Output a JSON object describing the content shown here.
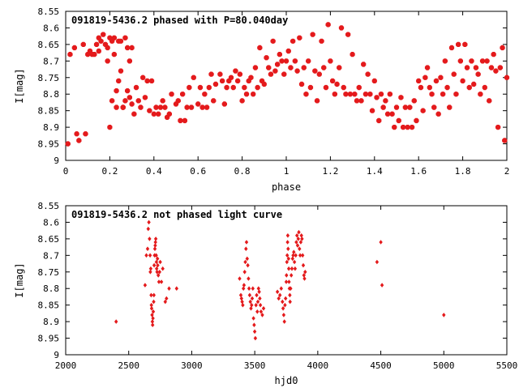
{
  "chart_data": [
    {
      "type": "scatter",
      "title": "091819-5436.2 phased with P=80.040day",
      "xlabel": "phase",
      "ylabel": "I[mag]",
      "xlim": [
        0,
        2
      ],
      "ylim": [
        9,
        8.55
      ],
      "y_inverted": true,
      "grid": false,
      "xticks": [
        0,
        0.2,
        0.4,
        0.6,
        0.8,
        1,
        1.2,
        1.4,
        1.6,
        1.8,
        2
      ],
      "xtick_labels": [
        "0",
        "0.2",
        "0.4",
        "0.6",
        "0.8",
        "1",
        "1.2",
        "1.4",
        "1.6",
        "1.8",
        "2"
      ],
      "yticks": [
        8.55,
        8.6,
        8.65,
        8.7,
        8.75,
        8.8,
        8.85,
        8.9,
        8.95,
        9
      ],
      "ytick_labels": [
        "8.55",
        "8.6",
        "8.65",
        "8.7",
        "8.75",
        "8.8",
        "8.85",
        "8.9",
        "8.95",
        "9"
      ],
      "color": "#e41a1c",
      "marker": "star",
      "series": [
        {
          "x": [
            0.01,
            0.02,
            0.04,
            0.05,
            0.06,
            0.08,
            0.09,
            0.1,
            0.11,
            0.12,
            0.13,
            0.14,
            0.15,
            0.15,
            0.16,
            0.17,
            0.18,
            0.19,
            0.19,
            0.2,
            0.2,
            0.21,
            0.21,
            0.22,
            0.22,
            0.23,
            0.23,
            0.24,
            0.24,
            0.25,
            0.25,
            0.26,
            0.26,
            0.27,
            0.27,
            0.28,
            0.28,
            0.29,
            0.29,
            0.3,
            0.3,
            0.31,
            0.32,
            0.33,
            0.34,
            0.35,
            0.36,
            0.37,
            0.38,
            0.39,
            0.4,
            0.41,
            0.42,
            0.43,
            0.44,
            0.45,
            0.46,
            0.47,
            0.48,
            0.5,
            0.51,
            0.52,
            0.53,
            0.54,
            0.55,
            0.56,
            0.57,
            0.58,
            0.6,
            0.61,
            0.62,
            0.63,
            0.64,
            0.65,
            0.66,
            0.67,
            0.68,
            0.7,
            0.71,
            0.72,
            0.73,
            0.74,
            0.75,
            0.76,
            0.77,
            0.78,
            0.79,
            0.8,
            0.81,
            0.82,
            0.83,
            0.84,
            0.85,
            0.86,
            0.87,
            0.88,
            0.89,
            0.9,
            0.91,
            0.92,
            0.93,
            0.94,
            0.95,
            0.96,
            0.97,
            0.98,
            0.99,
            1.0,
            1.01,
            1.02,
            1.03,
            1.04,
            1.05,
            1.06,
            1.07,
            1.08,
            1.09,
            1.1,
            1.11,
            1.12,
            1.13,
            1.14,
            1.15,
            1.16,
            1.17,
            1.18,
            1.19,
            1.2,
            1.21,
            1.22,
            1.23,
            1.24,
            1.25,
            1.26,
            1.27,
            1.28,
            1.29,
            1.3,
            1.31,
            1.32,
            1.33,
            1.34,
            1.35,
            1.36,
            1.37,
            1.38,
            1.39,
            1.4,
            1.41,
            1.42,
            1.43,
            1.44,
            1.45,
            1.46,
            1.47,
            1.48,
            1.49,
            1.5,
            1.51,
            1.52,
            1.53,
            1.54,
            1.55,
            1.56,
            1.57,
            1.58,
            1.59,
            1.6,
            1.61,
            1.62,
            1.63,
            1.64,
            1.65,
            1.66,
            1.67,
            1.68,
            1.69,
            1.7,
            1.71,
            1.72,
            1.73,
            1.74,
            1.75,
            1.76,
            1.77,
            1.78,
            1.79,
            1.8,
            1.81,
            1.82,
            1.83,
            1.84,
            1.85,
            1.86,
            1.87,
            1.88,
            1.89,
            1.9,
            1.91,
            1.92,
            1.93,
            1.94,
            1.95,
            1.96,
            1.97,
            1.98,
            1.99,
            2.0
          ],
          "y": [
            8.95,
            8.68,
            8.66,
            8.92,
            8.94,
            8.65,
            8.92,
            8.68,
            8.67,
            8.68,
            8.68,
            8.65,
            8.63,
            8.67,
            8.64,
            8.62,
            8.65,
            8.66,
            8.7,
            8.63,
            8.9,
            8.64,
            8.82,
            8.63,
            8.68,
            8.79,
            8.84,
            8.64,
            8.76,
            8.64,
            8.73,
            8.84,
            8.84,
            8.63,
            8.82,
            8.66,
            8.79,
            8.81,
            8.7,
            8.83,
            8.66,
            8.86,
            8.78,
            8.82,
            8.84,
            8.75,
            8.81,
            8.76,
            8.85,
            8.76,
            8.86,
            8.84,
            8.86,
            8.84,
            8.82,
            8.84,
            8.87,
            8.86,
            8.8,
            8.83,
            8.82,
            8.88,
            8.8,
            8.88,
            8.84,
            8.78,
            8.84,
            8.75,
            8.83,
            8.78,
            8.84,
            8.8,
            8.84,
            8.78,
            8.74,
            8.82,
            8.77,
            8.74,
            8.76,
            8.83,
            8.78,
            8.76,
            8.75,
            8.78,
            8.73,
            8.76,
            8.74,
            8.82,
            8.78,
            8.8,
            8.76,
            8.75,
            8.8,
            8.72,
            8.78,
            8.66,
            8.76,
            8.77,
            8.69,
            8.72,
            8.74,
            8.64,
            8.73,
            8.71,
            8.68,
            8.7,
            8.74,
            8.7,
            8.67,
            8.72,
            8.64,
            8.7,
            8.73,
            8.63,
            8.77,
            8.72,
            8.8,
            8.7,
            8.78,
            8.62,
            8.73,
            8.82,
            8.74,
            8.64,
            8.72,
            8.78,
            8.59,
            8.7,
            8.76,
            8.8,
            8.77,
            8.72,
            8.6,
            8.78,
            8.8,
            8.62,
            8.8,
            8.68,
            8.8,
            8.82,
            8.78,
            8.82,
            8.71,
            8.8,
            8.74,
            8.8,
            8.85,
            8.76,
            8.81,
            8.88,
            8.8,
            8.84,
            8.82,
            8.86,
            8.8,
            8.86,
            8.9,
            8.84,
            8.88,
            8.81,
            8.9,
            8.84,
            8.9,
            8.84,
            8.9,
            8.82,
            8.88,
            8.76,
            8.78,
            8.85,
            8.75,
            8.72,
            8.78,
            8.8,
            8.84,
            8.76,
            8.86,
            8.75,
            8.8,
            8.7,
            8.78,
            8.84,
            8.66,
            8.74,
            8.8,
            8.65,
            8.7,
            8.76,
            8.65,
            8.72,
            8.78,
            8.7,
            8.77,
            8.72,
            8.74,
            8.8,
            8.7,
            8.78,
            8.7,
            8.82,
            8.72,
            8.68,
            8.73,
            8.9,
            8.72,
            8.66,
            8.94,
            8.75
          ]
        }
      ]
    },
    {
      "type": "scatter",
      "title": "091819-5436.2 not phased light curve",
      "xlabel": "hjd0",
      "ylabel": "I[mag]",
      "xlim": [
        2000,
        5500
      ],
      "ylim": [
        9,
        8.55
      ],
      "y_inverted": true,
      "grid": false,
      "xticks": [
        2000,
        2500,
        3000,
        3500,
        4000,
        4500,
        5000,
        5500
      ],
      "xtick_labels": [
        "2000",
        "2500",
        "3000",
        "3500",
        "4000",
        "4500",
        "5000",
        "5500"
      ],
      "yticks": [
        8.55,
        8.6,
        8.65,
        8.7,
        8.75,
        8.8,
        8.85,
        8.9,
        8.95,
        9
      ],
      "ytick_labels": [
        "8.55",
        "8.6",
        "8.65",
        "8.7",
        "8.75",
        "8.8",
        "8.85",
        "8.9",
        "8.95",
        "9"
      ],
      "color": "#e41a1c",
      "marker": "diamond",
      "series": [
        {
          "x": [
            2400,
            2630,
            2640,
            2650,
            2655,
            2660,
            2665,
            2670,
            2672,
            2675,
            2678,
            2680,
            2682,
            2685,
            2688,
            2690,
            2692,
            2695,
            2698,
            2700,
            2702,
            2705,
            2708,
            2710,
            2712,
            2715,
            2718,
            2720,
            2722,
            2725,
            2728,
            2730,
            2735,
            2740,
            2745,
            2750,
            2760,
            2770,
            2790,
            2800,
            2820,
            2880,
            3380,
            3390,
            3395,
            3400,
            3405,
            3410,
            3415,
            3420,
            3425,
            3430,
            3435,
            3440,
            3445,
            3450,
            3455,
            3460,
            3465,
            3470,
            3475,
            3480,
            3485,
            3490,
            3495,
            3500,
            3505,
            3510,
            3515,
            3520,
            3525,
            3530,
            3535,
            3540,
            3545,
            3550,
            3560,
            3570,
            3680,
            3690,
            3700,
            3710,
            3720,
            3725,
            3730,
            3735,
            3740,
            3745,
            3750,
            3752,
            3755,
            3758,
            3760,
            3762,
            3765,
            3768,
            3770,
            3772,
            3775,
            3778,
            3780,
            3785,
            3790,
            3795,
            3800,
            3805,
            3810,
            3815,
            3820,
            3825,
            3830,
            3835,
            3840,
            3845,
            3850,
            3855,
            3860,
            3865,
            3870,
            3875,
            3880,
            3885,
            3890,
            3895,
            3900,
            4470,
            4500,
            4510,
            5000
          ],
          "y": [
            8.9,
            8.79,
            8.7,
            8.68,
            8.62,
            8.6,
            8.65,
            8.7,
            8.75,
            8.74,
            8.82,
            8.85,
            8.86,
            8.88,
            8.9,
            8.91,
            8.89,
            8.87,
            8.84,
            8.82,
            8.73,
            8.7,
            8.68,
            8.67,
            8.66,
            8.65,
            8.7,
            8.72,
            8.74,
            8.75,
            8.71,
            8.73,
            8.76,
            8.78,
            8.75,
            8.72,
            8.78,
            8.74,
            8.84,
            8.83,
            8.8,
            8.8,
            8.77,
            8.82,
            8.83,
            8.84,
            8.85,
            8.8,
            8.79,
            8.75,
            8.72,
            8.68,
            8.66,
            8.71,
            8.73,
            8.77,
            8.8,
            8.82,
            8.84,
            8.86,
            8.85,
            8.83,
            8.8,
            8.89,
            8.91,
            8.93,
            8.95,
            8.85,
            8.82,
            8.87,
            8.84,
            8.8,
            8.81,
            8.83,
            8.85,
            8.87,
            8.88,
            8.86,
            8.81,
            8.83,
            8.82,
            8.8,
            8.84,
            8.86,
            8.88,
            8.9,
            8.85,
            8.83,
            8.78,
            8.76,
            8.72,
            8.7,
            8.66,
            8.64,
            8.68,
            8.71,
            8.74,
            8.78,
            8.8,
            8.82,
            8.84,
            8.8,
            8.76,
            8.74,
            8.71,
            8.7,
            8.69,
            8.72,
            8.74,
            8.7,
            8.66,
            8.64,
            8.67,
            8.65,
            8.63,
            8.68,
            8.7,
            8.66,
            8.64,
            8.65,
            8.7,
            8.73,
            8.76,
            8.77,
            8.75,
            8.72,
            8.66,
            8.79,
            8.88
          ]
        }
      ]
    }
  ]
}
